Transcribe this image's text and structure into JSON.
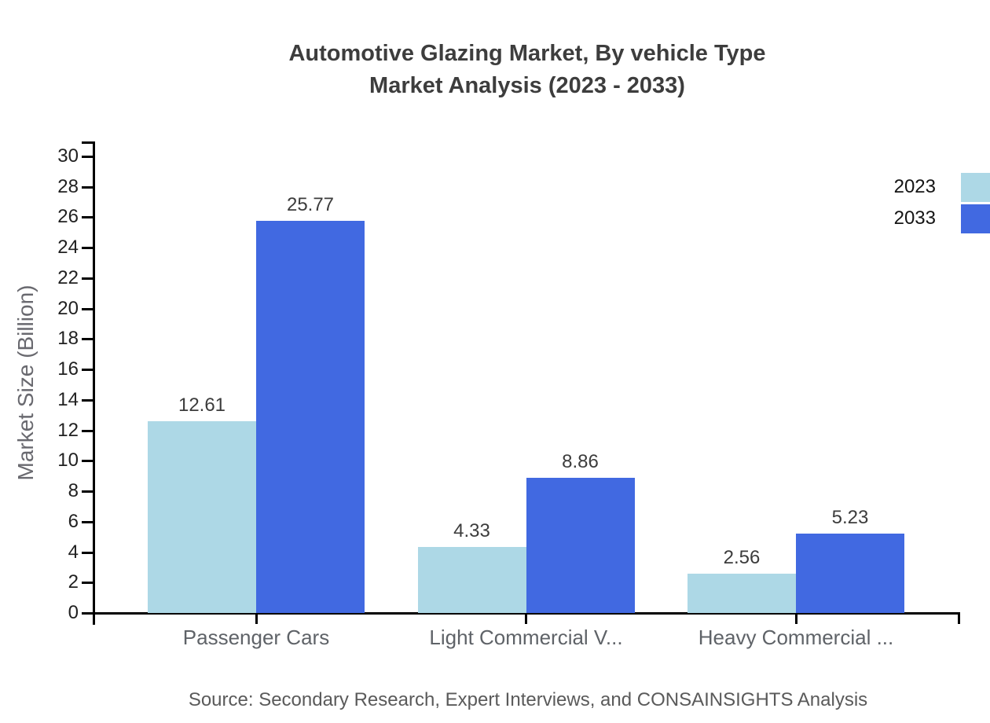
{
  "title": {
    "line1": "Automotive Glazing Market, By vehicle Type",
    "line2": "Market Analysis (2023 - 2033)"
  },
  "source": "Source: Secondary Research, Expert Interviews, and CONSAINSIGHTS Analysis",
  "legend": {
    "position": "top-right",
    "items": [
      {
        "label": "2023",
        "color": "#ADD8E6"
      },
      {
        "label": "2033",
        "color": "#4169E1"
      }
    ]
  },
  "colors": {
    "series_2023": "#ADD8E6",
    "series_2033": "#4169E1",
    "axis": "#000000",
    "title_text": "#3d3d3d",
    "muted_text": "#5f6368"
  },
  "chart_data": {
    "type": "bar",
    "title": "Automotive Glazing Market, By vehicle Type Market Analysis (2023 - 2033)",
    "categories": [
      "Passenger Cars",
      "Light Commercial V...",
      "Heavy Commercial ..."
    ],
    "series": [
      {
        "name": "2023",
        "color": "#ADD8E6",
        "values": [
          12.61,
          4.33,
          2.56
        ]
      },
      {
        "name": "2033",
        "color": "#4169E1",
        "values": [
          25.77,
          8.86,
          5.23
        ]
      }
    ],
    "value_labels": [
      [
        "12.61",
        "4.33",
        "2.56"
      ],
      [
        "25.77",
        "8.86",
        "5.23"
      ]
    ],
    "xlabel": "",
    "ylabel": "Market Size (Billion)",
    "ylim": [
      0,
      30
    ],
    "ytick_step": 2,
    "grid": false,
    "legend_position": "top-right"
  }
}
